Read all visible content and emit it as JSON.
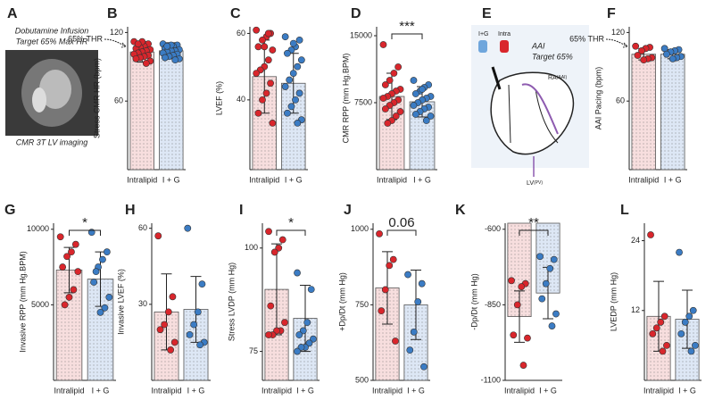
{
  "panel_a": {
    "label": "A",
    "lines": [
      "Dobutamine Infusion",
      "Target 65% Max HR"
    ],
    "caption": "CMR 3T LV imaging"
  },
  "panel_e": {
    "label": "E",
    "bag_left": "I+G",
    "bag_right": "Intra",
    "mode": "AAI",
    "target": "Target 65%",
    "ra": "RA",
    "ra_sub": "(AAI)",
    "lv": "LV",
    "lv_sub": "(PV)"
  },
  "chart_data": [
    {
      "type": "bar",
      "label": "B",
      "ylabel": "Stress CMR HR (bpm)",
      "threshold_label": "65% THR",
      "categories": [
        "Intralipid",
        "I + G"
      ],
      "colors": [
        "#f7dede",
        "#dde7f5"
      ],
      "point_colors": [
        "#d9262c",
        "#3b7cc4"
      ],
      "values": [
        103,
        104
      ],
      "errors": [
        9,
        7
      ],
      "points": [
        [
          112,
          110,
          108,
          107,
          106,
          105,
          104,
          103,
          102,
          101,
          100,
          99,
          98,
          97,
          95,
          93,
          112,
          110
        ],
        [
          110,
          109,
          108,
          107,
          106,
          105,
          104,
          104,
          103,
          102,
          101,
          100,
          99,
          98,
          97,
          96,
          109,
          108
        ]
      ],
      "ylim": [
        0,
        125
      ],
      "yticks": [
        60,
        120
      ]
    },
    {
      "type": "bar",
      "label": "C",
      "ylabel": "LVEF (%)",
      "categories": [
        "Intralipid",
        "I + G"
      ],
      "colors": [
        "#f7dede",
        "#dde7f5"
      ],
      "point_colors": [
        "#d9262c",
        "#3b7cc4"
      ],
      "values": [
        47,
        45
      ],
      "errors": [
        11,
        9
      ],
      "points": [
        [
          61,
          60,
          59,
          58,
          56,
          55,
          52,
          50,
          49,
          48,
          45,
          42,
          40,
          36,
          33,
          60,
          56
        ],
        [
          59,
          58,
          56,
          55,
          54,
          52,
          50,
          48,
          46,
          44,
          42,
          40,
          38,
          36,
          34,
          33,
          57
        ]
      ],
      "ylim": [
        19,
        62
      ],
      "yticks": [
        40,
        60
      ]
    },
    {
      "type": "bar",
      "label": "D",
      "ylabel": "CMR RPP (mm Hg.BPM)",
      "significance": "***",
      "categories": [
        "Intralipid",
        "I + G"
      ],
      "colors": [
        "#f7dede",
        "#dde7f5"
      ],
      "point_colors": [
        "#d9262c",
        "#3b7cc4"
      ],
      "values": [
        8200,
        7600
      ],
      "errors": [
        2600,
        1700
      ],
      "points": [
        [
          14000,
          11500,
          10800,
          10000,
          9500,
          9000,
          8800,
          8500,
          8200,
          8000,
          7800,
          7500,
          7200,
          6800,
          6500,
          6000,
          5500,
          5200
        ],
        [
          10000,
          9500,
          9200,
          8800,
          8500,
          8200,
          8000,
          7800,
          7500,
          7200,
          7000,
          6800,
          6500,
          6200,
          6000,
          5500,
          9000
        ]
      ],
      "ylim": [
        0,
        16000
      ],
      "yticks": [
        7500,
        15000
      ]
    },
    {
      "type": "bar",
      "label": "F",
      "ylabel": "AAI Pacing (bpm)",
      "threshold_label": "65% THR",
      "categories": [
        "Intralipid",
        "I + G"
      ],
      "colors": [
        "#f7dede",
        "#dde7f5"
      ],
      "point_colors": [
        "#d9262c",
        "#3b7cc4"
      ],
      "values": [
        101,
        101
      ],
      "errors": [
        5,
        4
      ],
      "points": [
        [
          108,
          107,
          106,
          104,
          100,
          98,
          97,
          96
        ],
        [
          106,
          105,
          104,
          103,
          101,
          99,
          98,
          97
        ]
      ],
      "ylim": [
        0,
        125
      ],
      "yticks": [
        60,
        120
      ]
    },
    {
      "type": "bar",
      "label": "G",
      "ylabel": "Invasive RPP (mm Hg.BPM)",
      "significance": "*",
      "categories": [
        "Intralipid",
        "I + G"
      ],
      "colors": [
        "#f7dede",
        "#dde7f5"
      ],
      "point_colors": [
        "#d9262c",
        "#3b7cc4"
      ],
      "values": [
        7300,
        6700
      ],
      "errors": [
        1500,
        1800
      ],
      "points": [
        [
          9500,
          9000,
          8500,
          8200,
          7500,
          7200,
          6000,
          5500,
          5000
        ],
        [
          9800,
          8500,
          8000,
          7500,
          6500,
          5500,
          4800,
          4500,
          7200
        ]
      ],
      "ylim": [
        0,
        10400
      ],
      "yticks": [
        5000,
        10000
      ]
    },
    {
      "type": "bar",
      "label": "H",
      "ylabel": "Invasive LVEF (%)",
      "categories": [
        "Intralipid",
        "I + G"
      ],
      "colors": [
        "#f7dede",
        "#dde7f5"
      ],
      "point_colors": [
        "#d9262c",
        "#3b7cc4"
      ],
      "values": [
        27,
        28
      ],
      "errors": [
        15,
        13
      ],
      "points": [
        [
          57,
          33,
          27,
          22,
          20,
          15,
          12
        ],
        [
          60,
          38,
          27,
          22,
          18,
          15,
          14
        ]
      ],
      "ylim": [
        0,
        62
      ],
      "yticks": [
        30,
        60
      ]
    },
    {
      "type": "bar",
      "label": "I",
      "ylabel": "Stress LVDP (mm Hg)",
      "significance": "*",
      "categories": [
        "Intralipid",
        "I + G"
      ],
      "colors": [
        "#f7dede",
        "#dde7f5"
      ],
      "point_colors": [
        "#d9262c",
        "#3b7cc4"
      ],
      "values": [
        90,
        83
      ],
      "errors": [
        11,
        8
      ],
      "points": [
        [
          104,
          102,
          100,
          99,
          86,
          82,
          80,
          80,
          79,
          79
        ],
        [
          94,
          90,
          82,
          80,
          79,
          78,
          77,
          76,
          76,
          75
        ]
      ],
      "ylim": [
        68,
        106
      ],
      "yticks": [
        75,
        100
      ]
    },
    {
      "type": "bar",
      "label": "J",
      "ylabel": "+Dp/Dt (mm Hg)",
      "significance": "0.06",
      "categories": [
        "Intralipid",
        "I + G"
      ],
      "colors": [
        "#f7dede",
        "#dde7f5"
      ],
      "point_colors": [
        "#d9262c",
        "#3b7cc4"
      ],
      "values": [
        806,
        750
      ],
      "errors": [
        120,
        115
      ],
      "points": [
        [
          985,
          900,
          880,
          800,
          730,
          630
        ],
        [
          850,
          820,
          760,
          660,
          600,
          545
        ]
      ],
      "ylim": [
        500,
        1020
      ],
      "yticks": [
        500,
        750,
        1000
      ]
    },
    {
      "type": "bar",
      "label": "K",
      "ylabel": "-Dp/Dt (mm Hg)",
      "significance": "**",
      "categories": [
        "Intralipid",
        "I + G"
      ],
      "colors": [
        "#f7dede",
        "#dde7f5"
      ],
      "point_colors": [
        "#d9262c",
        "#3b7cc4"
      ],
      "values": [
        -889,
        -811
      ],
      "errors": [
        85,
        85
      ],
      "points": [
        [
          -770,
          -780,
          -790,
          -850,
          -950,
          -960,
          -1050
        ],
        [
          -690,
          -700,
          -730,
          -780,
          -830,
          -880,
          -920
        ]
      ],
      "ylim": [
        -1100,
        -580
      ],
      "yticks": [
        -1100,
        -850,
        -600
      ]
    },
    {
      "type": "bar",
      "label": "L",
      "ylabel": "LVEDP (mm Hg)",
      "categories": [
        "Intralipid",
        "I + G"
      ],
      "colors": [
        "#f7dede",
        "#dde7f5"
      ],
      "point_colors": [
        "#d9262c",
        "#3b7cc4"
      ],
      "values": [
        11,
        10.5
      ],
      "errors": [
        6,
        5
      ],
      "points": [
        [
          25,
          11,
          10,
          9,
          8,
          6,
          5
        ],
        [
          22,
          12,
          11,
          10,
          8,
          6,
          5
        ]
      ],
      "ylim": [
        0,
        27
      ],
      "yticks": [
        12,
        24
      ]
    }
  ]
}
